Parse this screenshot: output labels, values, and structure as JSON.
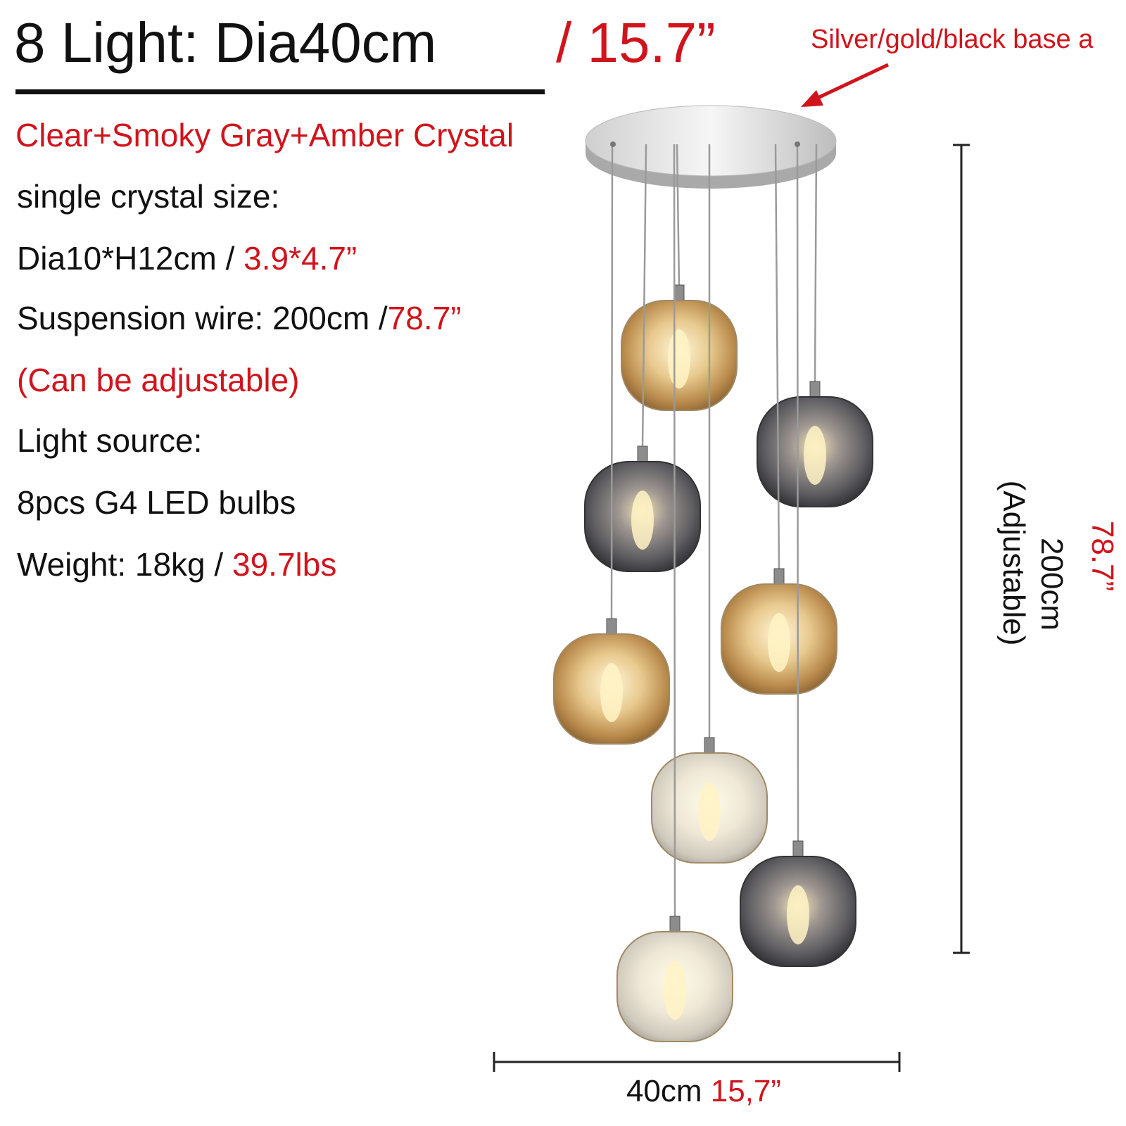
{
  "header": {
    "title": "8 Light: Dia40cm",
    "title_inch": "/ 15.7”"
  },
  "callout": "Silver/gold/black base a",
  "specs": {
    "colors": "Clear+Smoky Gray+Amber Crystal",
    "crystal_label": "single crystal size:",
    "crystal_size": {
      "metric": "Dia10*H12cm /",
      "inch": "3.9*4.7”"
    },
    "wire": {
      "metric": "Suspension wire: 200cm /",
      "inch": "78.7”"
    },
    "adjustable": "(Can be adjustable)",
    "source_label": "Light source:",
    "source": "8pcs G4 LED bulbs",
    "weight": {
      "metric": "Weight: 18kg  /",
      "inch": "39.7lbs"
    }
  },
  "dimensions": {
    "height": {
      "metric": "200cm",
      "note": "(Adjustable)",
      "inch": "78.7”"
    },
    "width": {
      "metric": "40cm",
      "inch": "15,7”"
    }
  }
}
